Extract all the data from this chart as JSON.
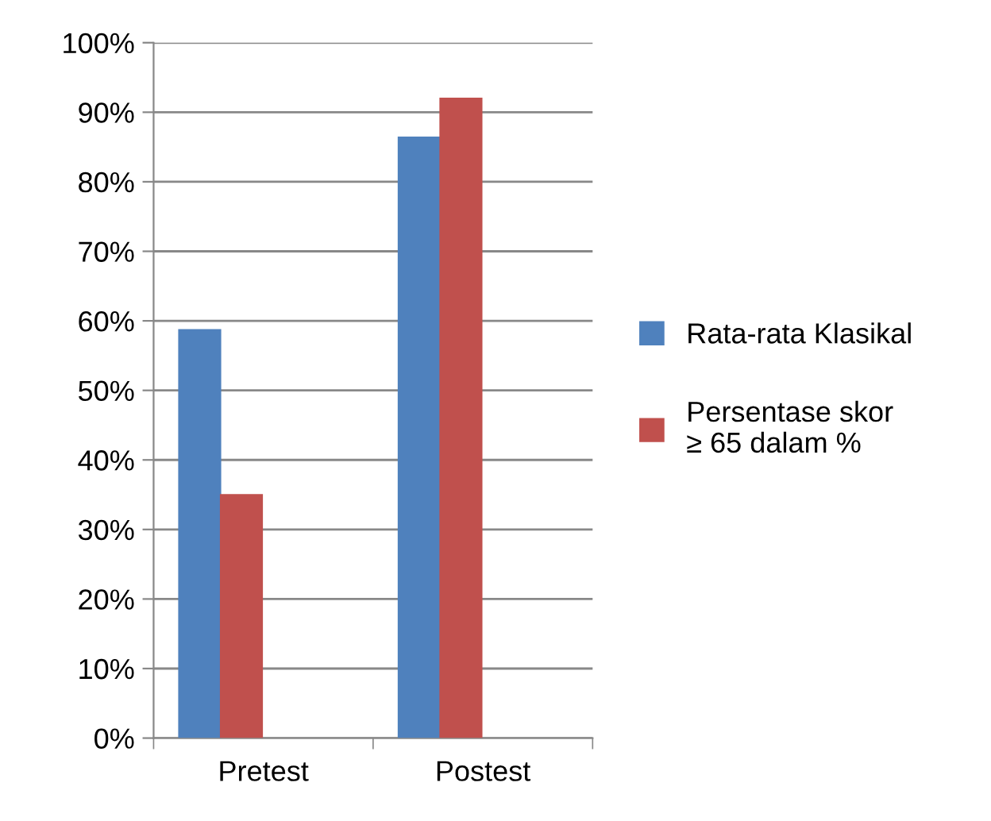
{
  "chart_data": {
    "type": "bar",
    "categories": [
      "Pretest",
      "Postest"
    ],
    "series": [
      {
        "name": "Rata-rata Klasikal",
        "color": "#4f81bd",
        "values": [
          58.8,
          86.5
        ]
      },
      {
        "name": "Persentase skor\n≥ 65 dalam %",
        "color": "#c0504d",
        "values": [
          35.1,
          92.1
        ]
      }
    ],
    "ylim": [
      0,
      100
    ],
    "yticks": [
      {
        "value": 0,
        "label": "0%"
      },
      {
        "value": 10,
        "label": "10%"
      },
      {
        "value": 20,
        "label": "20%"
      },
      {
        "value": 30,
        "label": "30%"
      },
      {
        "value": 40,
        "label": "40%"
      },
      {
        "value": 50,
        "label": "50%"
      },
      {
        "value": 60,
        "label": "60%"
      },
      {
        "value": 70,
        "label": "70%"
      },
      {
        "value": 80,
        "label": "80%"
      },
      {
        "value": 90,
        "label": "90%"
      },
      {
        "value": 100,
        "label": "100%"
      }
    ],
    "grid": "y",
    "legend": "right"
  }
}
